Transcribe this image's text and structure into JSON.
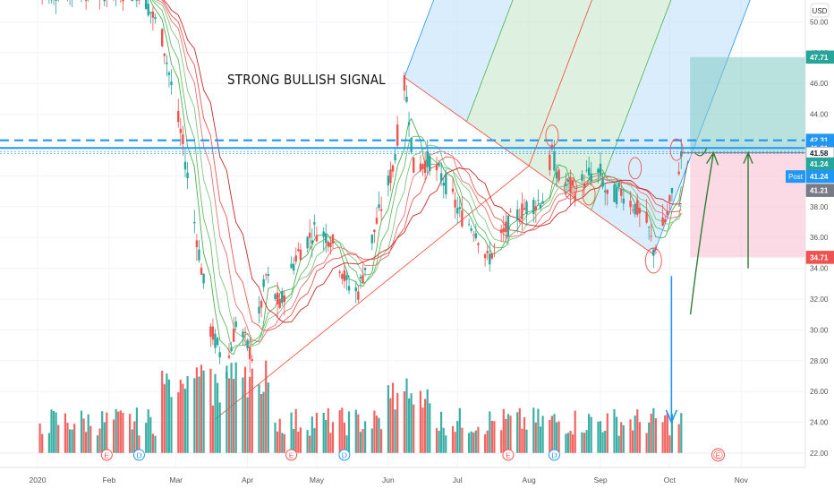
{
  "annotation": "STRONG BULLISH SIGNAL",
  "currency_label": "USD",
  "post_label": "Post",
  "colors": {
    "up": "#26a69a",
    "down": "#ef5350",
    "blue_dash": "#2196f3",
    "axis_text": "#555555",
    "pitch_blue_fill": "#bbdefb",
    "pitch_green_fill": "#c8e6c9",
    "target_fill": "#80cbc4",
    "stop_fill": "#f8bbd0"
  },
  "chart_data": {
    "type": "candlestick",
    "ylim": [
      21.0,
      51.5
    ],
    "y_ticks": [
      "22.00",
      "24.00",
      "26.00",
      "28.00",
      "30.00",
      "32.00",
      "34.00",
      "36.00",
      "38.00",
      "40.00",
      "42.00",
      "44.00",
      "46.00",
      "48.00",
      "50.00"
    ],
    "x_ticks": [
      "2020",
      "Feb",
      "Mar",
      "Apr",
      "May",
      "Jun",
      "Jul",
      "Aug",
      "Sep",
      "Oct",
      "Nov"
    ],
    "price_badges": [
      {
        "label": "47.71",
        "value": 47.71,
        "color": "#26a69a"
      },
      {
        "label": "42.31",
        "value": 42.31,
        "color": "#2196f3"
      },
      {
        "label": "41.81",
        "value": 41.81,
        "color": "#2196f3"
      },
      {
        "label": "41.58",
        "value": 41.58,
        "color": "#ffffff"
      },
      {
        "label": "41.24",
        "value": 41.24,
        "color": "#26a69a"
      },
      {
        "label": "41.24",
        "value": 41.24,
        "color": "#2196f3",
        "prefix": "Post"
      },
      {
        "label": "41.21",
        "value": 41.21,
        "color": "#787b86"
      },
      {
        "label": "34.71",
        "value": 34.71,
        "color": "#ef5350"
      }
    ],
    "horizontal_lines": [
      42.31,
      41.81
    ],
    "events_row1": [
      "E",
      "D",
      "E",
      "D",
      "E",
      "D"
    ],
    "events_row2": [
      "E",
      "D",
      "E",
      "D"
    ],
    "future_event": "E",
    "close_key_points": [
      {
        "d": "2020-01-02",
        "v": 52.0
      },
      {
        "d": "2020-02-15",
        "v": 52.0
      },
      {
        "d": "2020-02-24",
        "v": 49.0
      },
      {
        "d": "2020-03-04",
        "v": 42.0
      },
      {
        "d": "2020-03-10",
        "v": 36.0
      },
      {
        "d": "2020-03-16",
        "v": 30.0
      },
      {
        "d": "2020-03-23",
        "v": 27.5
      },
      {
        "d": "2020-03-27",
        "v": 30.5
      },
      {
        "d": "2020-04-03",
        "v": 28.3
      },
      {
        "d": "2020-04-09",
        "v": 33.5
      },
      {
        "d": "2020-04-15",
        "v": 31.5
      },
      {
        "d": "2020-04-22",
        "v": 34.8
      },
      {
        "d": "2020-04-30",
        "v": 36.5
      },
      {
        "d": "2020-05-07",
        "v": 36.0
      },
      {
        "d": "2020-05-14",
        "v": 33.0
      },
      {
        "d": "2020-05-19",
        "v": 32.5
      },
      {
        "d": "2020-05-27",
        "v": 37.0
      },
      {
        "d": "2020-06-03",
        "v": 40.5
      },
      {
        "d": "2020-06-08",
        "v": 45.9
      },
      {
        "d": "2020-06-10",
        "v": 44.0
      },
      {
        "d": "2020-06-12",
        "v": 40.5
      },
      {
        "d": "2020-06-19",
        "v": 41.0
      },
      {
        "d": "2020-06-26",
        "v": 39.5
      },
      {
        "d": "2020-07-02",
        "v": 37.5
      },
      {
        "d": "2020-07-09",
        "v": 36.5
      },
      {
        "d": "2020-07-14",
        "v": 34.5
      },
      {
        "d": "2020-07-24",
        "v": 37.0
      },
      {
        "d": "2020-07-31",
        "v": 38.0
      },
      {
        "d": "2020-08-07",
        "v": 38.5
      },
      {
        "d": "2020-08-11",
        "v": 41.5
      },
      {
        "d": "2020-08-14",
        "v": 39.8
      },
      {
        "d": "2020-08-21",
        "v": 39.0
      },
      {
        "d": "2020-08-26",
        "v": 40.0
      },
      {
        "d": "2020-09-01",
        "v": 40.2
      },
      {
        "d": "2020-09-04",
        "v": 38.5
      },
      {
        "d": "2020-09-10",
        "v": 39.0
      },
      {
        "d": "2020-09-16",
        "v": 38.0
      },
      {
        "d": "2020-09-21",
        "v": 37.0
      },
      {
        "d": "2020-09-24",
        "v": 35.2
      },
      {
        "d": "2020-09-30",
        "v": 37.5
      },
      {
        "d": "2020-10-06",
        "v": 41.24
      }
    ],
    "volume_ylim": [
      0,
      60
    ]
  }
}
